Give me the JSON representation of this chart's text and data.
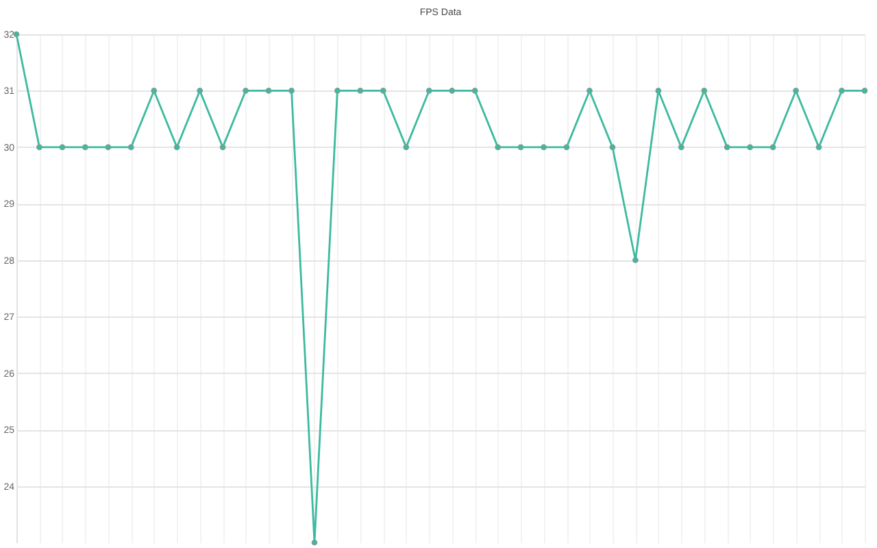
{
  "chart_data": {
    "type": "line",
    "title": "FPS Data",
    "categories": [
      null,
      null,
      null,
      null,
      null,
      null,
      null,
      null,
      null,
      null,
      null,
      null,
      null,
      null,
      null,
      null,
      null,
      null,
      null,
      null,
      null,
      null,
      null,
      null,
      null,
      null,
      null,
      null,
      null,
      null,
      null,
      null,
      null,
      null,
      null,
      null,
      null,
      null
    ],
    "series": [
      {
        "color": "#3cba9f",
        "values": [
          32,
          30,
          30,
          30,
          30,
          30,
          31,
          30,
          31,
          30,
          31,
          31,
          31,
          23,
          31,
          31,
          31,
          30,
          31,
          31,
          31,
          30,
          30,
          30,
          30,
          31,
          30,
          28,
          31,
          30,
          31,
          30,
          30,
          30,
          31,
          30,
          31,
          31
        ]
      }
    ],
    "ylim": [
      23,
      32
    ],
    "yticks": [
      24,
      25,
      26,
      27,
      28,
      29,
      30,
      31,
      32
    ],
    "grid": true,
    "marker": "circle",
    "tick_labels": "y"
  }
}
